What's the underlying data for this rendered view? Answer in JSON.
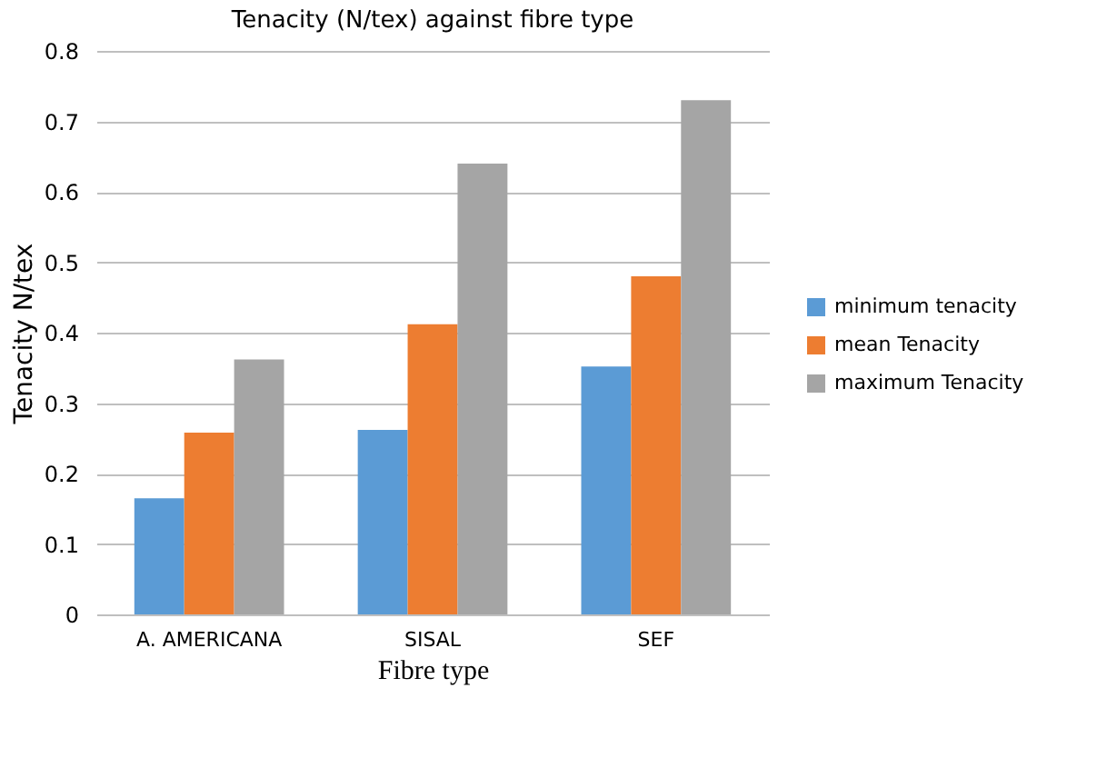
{
  "chart_data": {
    "type": "bar",
    "title": "Tenacity (N/tex) against   fibre type",
    "xlabel": "Fibre type",
    "ylabel": "Tenacity N/tex",
    "categories": [
      "A. AMERICANA",
      "SISAL",
      "SEF"
    ],
    "series": [
      {
        "name": "minimum tenacity",
        "color": "#5b9bd5",
        "values": [
          0.165,
          0.262,
          0.352
        ]
      },
      {
        "name": "mean Tenacity",
        "color": "#ed7d31",
        "values": [
          0.258,
          0.412,
          0.48
        ]
      },
      {
        "name": "maximum Tenacity",
        "color": "#a5a5a5",
        "values": [
          0.362,
          0.64,
          0.73
        ]
      }
    ],
    "ylim": [
      0,
      0.8
    ],
    "yticks": [
      0,
      0.1,
      0.2,
      0.3,
      0.4,
      0.5,
      0.6,
      0.7,
      0.8
    ],
    "grid": "y",
    "legend": "right"
  }
}
